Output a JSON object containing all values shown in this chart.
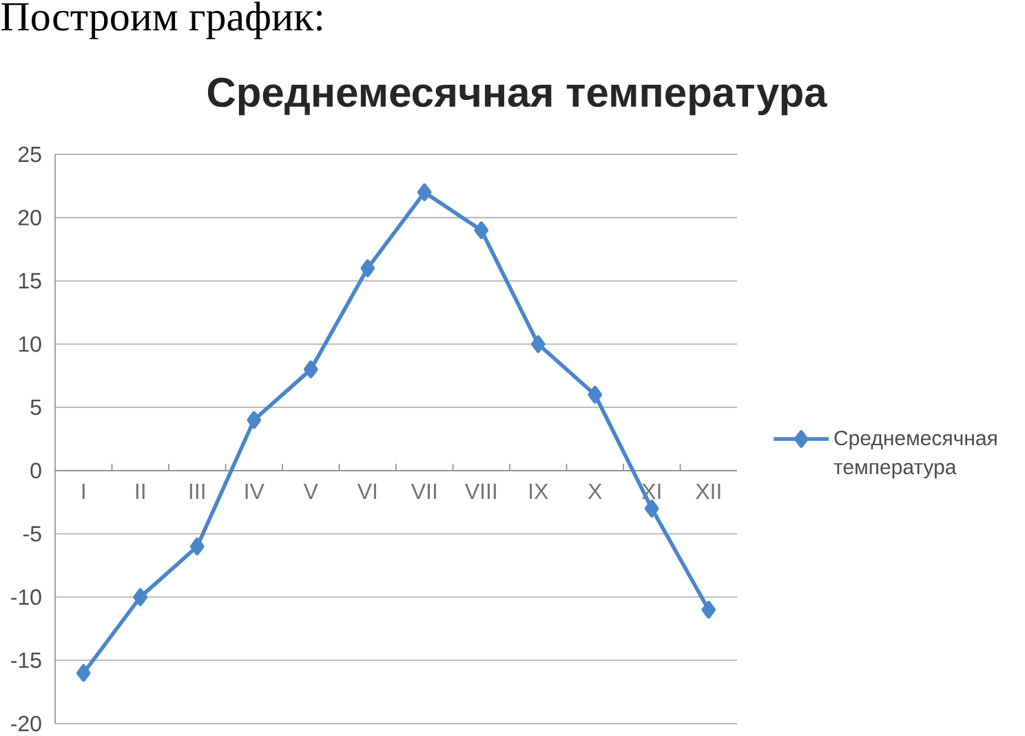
{
  "chart_data": {
    "type": "line",
    "title": "Среднемесячная температура",
    "annotations": [
      "Построим график:"
    ],
    "categories": [
      "I",
      "II",
      "III",
      "IV",
      "V",
      "VI",
      "VII",
      "VIII",
      "IX",
      "X",
      "XI",
      "XII"
    ],
    "series": [
      {
        "name": "Среднемесячная температура",
        "color": "#4a86cc",
        "values": [
          -16,
          -10,
          -6,
          4,
          8,
          16,
          22,
          19,
          10,
          6,
          -3,
          -11
        ]
      }
    ],
    "ylim": [
      -20,
      25
    ],
    "yticks": [
      -20,
      -15,
      -10,
      -5,
      0,
      5,
      10,
      15,
      20,
      25
    ],
    "grid": "y",
    "legend": "right",
    "marker": "diamond",
    "line_style": "solid"
  }
}
